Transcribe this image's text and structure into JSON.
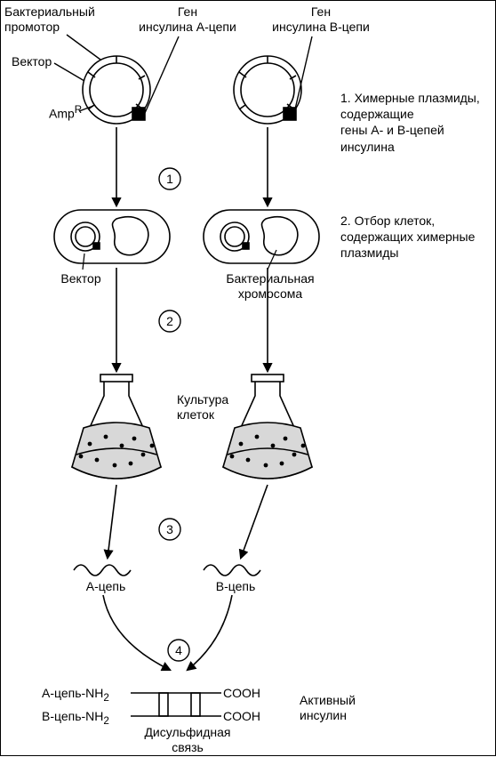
{
  "type": "flowchart",
  "colors": {
    "stroke": "#000000",
    "bg": "#ffffff",
    "liquid": "#d8d8d8"
  },
  "stroke_width": 1.6,
  "labels": {
    "bact_promoter": "Бактериальный\nпромотор",
    "vector_top": "Вектор",
    "gene_a": "Ген\nинсулина А-цепи",
    "gene_b": "Ген\nинсулина В-цепи",
    "ampr": "Amp",
    "ampr_sup": "R",
    "vector_mid": "Вектор",
    "bact_chrom": "Бактериальная\nхромосома",
    "culture": "Культура\nклеток",
    "a_chain": "А-цепь",
    "b_chain": "В-цепь",
    "a_chain_nh2": "А-цепь-NH",
    "b_chain_nh2": "В-цепь-NH",
    "nh2_sub": "2",
    "cooh": "COOH",
    "disulf": "Дисульфидная\nсвязь",
    "active": "Активный\nинсулин"
  },
  "steps": {
    "1": "1",
    "2": "2",
    "3": "3",
    "4": "4"
  },
  "side": {
    "step1": "1. Химерные плазмиды,\n    содержащие\n    гены А- и В-цепей\n    инсулина",
    "step2": "2. Отбор клеток,\n    содержащих химерные\n    плазмиды"
  }
}
